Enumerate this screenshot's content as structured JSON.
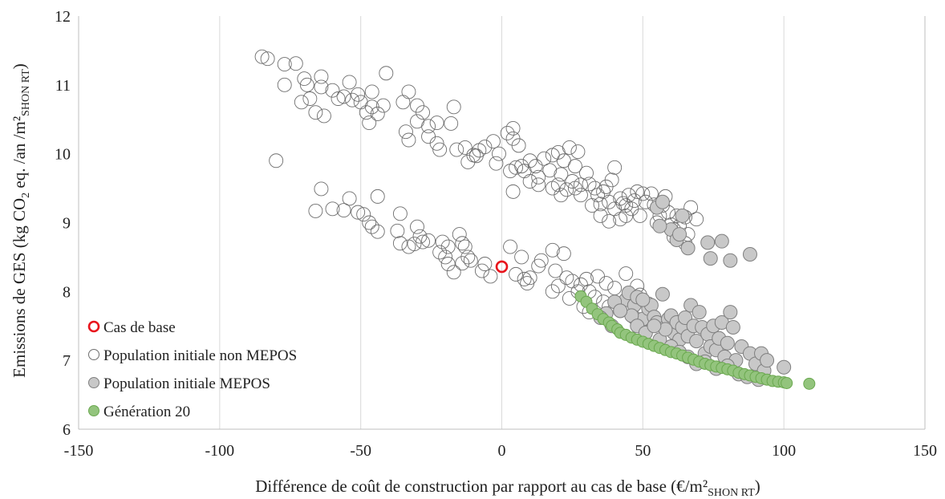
{
  "chart_data": {
    "type": "scatter",
    "xlabel": "Différence de coût de construction par rapport au cas de base (€/m²",
    "xlabel_sub": "SHON RT",
    "xlabel_end": ")",
    "ylabel_pre": "Emissions de GES (kg CO",
    "ylabel_co2_sub": "2",
    "ylabel_post": " eq. /an /m²",
    "ylabel_sub": "SHON RT",
    "ylabel_end": ")",
    "xlim": [
      -150,
      150
    ],
    "ylim": [
      6,
      12
    ],
    "x_ticks": [
      -150,
      -100,
      -50,
      0,
      50,
      100,
      150
    ],
    "y_ticks": [
      6,
      7,
      8,
      9,
      10,
      11,
      12
    ],
    "x_tick_labels": [
      "-150",
      "-100",
      "-50",
      "0",
      "50",
      "100",
      "150"
    ],
    "y_tick_labels": [
      "6",
      "7",
      "8",
      "9",
      "10",
      "11",
      "12"
    ],
    "grid": "vertical",
    "legend_position": "bottom-left",
    "series": [
      {
        "name": "Cas de base",
        "color": "#e8141c",
        "fill": "none",
        "points": [
          [
            0,
            8.36
          ]
        ]
      },
      {
        "name": "Population initiale non MEPOS",
        "color": "#6e6e6e",
        "fill": "none",
        "points": [
          [
            -85,
            11.41
          ],
          [
            -83,
            11.38
          ],
          [
            -77,
            11.3
          ],
          [
            -73,
            11.31
          ],
          [
            -70,
            11.09
          ],
          [
            -69,
            11.0
          ],
          [
            -64,
            11.12
          ],
          [
            -64,
            10.97
          ],
          [
            -60,
            10.92
          ],
          [
            -58,
            10.8
          ],
          [
            -54,
            11.04
          ],
          [
            -51,
            10.86
          ],
          [
            -46,
            10.9
          ],
          [
            -41,
            11.17
          ],
          [
            -33,
            10.9
          ],
          [
            -77,
            11.0
          ],
          [
            -71,
            10.75
          ],
          [
            -68,
            10.8
          ],
          [
            -66,
            10.6
          ],
          [
            -63,
            10.55
          ],
          [
            -56,
            10.83
          ],
          [
            -53,
            10.78
          ],
          [
            -50,
            10.75
          ],
          [
            -48,
            10.6
          ],
          [
            -46,
            10.68
          ],
          [
            -44,
            10.58
          ],
          [
            -47,
            10.45
          ],
          [
            -42,
            10.7
          ],
          [
            -35,
            10.75
          ],
          [
            -30,
            10.7
          ],
          [
            -28,
            10.6
          ],
          [
            -30,
            10.47
          ],
          [
            -26,
            10.4
          ],
          [
            -23,
            10.45
          ],
          [
            -18,
            10.44
          ],
          [
            -17,
            10.68
          ],
          [
            -34,
            10.32
          ],
          [
            -33,
            10.2
          ],
          [
            -26,
            10.25
          ],
          [
            -23,
            10.15
          ],
          [
            -22,
            10.06
          ],
          [
            -16,
            10.06
          ],
          [
            -13,
            10.09
          ],
          [
            -10,
            9.98
          ],
          [
            -8,
            10.05
          ],
          [
            -6,
            10.1
          ],
          [
            -3,
            10.18
          ],
          [
            -1,
            10.0
          ],
          [
            -12,
            9.88
          ],
          [
            -9,
            9.97
          ],
          [
            -2,
            9.86
          ],
          [
            2,
            10.3
          ],
          [
            4,
            10.37
          ],
          [
            4,
            10.22
          ],
          [
            6,
            10.12
          ],
          [
            3,
            9.75
          ],
          [
            5,
            9.8
          ],
          [
            7,
            9.82
          ],
          [
            8,
            9.75
          ],
          [
            10,
            9.9
          ],
          [
            12,
            9.82
          ],
          [
            13,
            9.66
          ],
          [
            15,
            9.93
          ],
          [
            17,
            9.76
          ],
          [
            18,
            9.98
          ],
          [
            20,
            10.02
          ],
          [
            21,
            9.7
          ],
          [
            22,
            9.9
          ],
          [
            24,
            10.09
          ],
          [
            26,
            9.82
          ],
          [
            27,
            10.03
          ],
          [
            4,
            9.45
          ],
          [
            10,
            9.6
          ],
          [
            13,
            9.55
          ],
          [
            18,
            9.5
          ],
          [
            20,
            9.55
          ],
          [
            21,
            9.4
          ],
          [
            23,
            9.48
          ],
          [
            25,
            9.6
          ],
          [
            26,
            9.5
          ],
          [
            28,
            9.55
          ],
          [
            28,
            9.4
          ],
          [
            30,
            9.72
          ],
          [
            31,
            9.56
          ],
          [
            33,
            9.5
          ],
          [
            34,
            9.4
          ],
          [
            35,
            9.27
          ],
          [
            36,
            9.45
          ],
          [
            37,
            9.52
          ],
          [
            38,
            9.3
          ],
          [
            39,
            9.62
          ],
          [
            40,
            9.8
          ],
          [
            40,
            9.2
          ],
          [
            42,
            9.35
          ],
          [
            43,
            9.28
          ],
          [
            44,
            9.1
          ],
          [
            45,
            9.4
          ],
          [
            46,
            9.2
          ],
          [
            47,
            9.32
          ],
          [
            48,
            9.45
          ],
          [
            49,
            9.1
          ],
          [
            50,
            9.42
          ],
          [
            51,
            9.3
          ],
          [
            53,
            9.42
          ],
          [
            54,
            9.26
          ],
          [
            55,
            9.0
          ],
          [
            56,
            9.1
          ],
          [
            57,
            9.25
          ],
          [
            58,
            9.38
          ],
          [
            59,
            9.15
          ],
          [
            60,
            8.97
          ],
          [
            61,
            8.9
          ],
          [
            61,
            8.79
          ],
          [
            62,
            9.1
          ],
          [
            63,
            8.95
          ],
          [
            65,
            9.08
          ],
          [
            65,
            8.7
          ],
          [
            66,
            8.83
          ],
          [
            67,
            9.22
          ],
          [
            69,
            9.05
          ],
          [
            32,
            9.25
          ],
          [
            35,
            9.1
          ],
          [
            38,
            9.02
          ],
          [
            42,
            9.05
          ],
          [
            44,
            9.25
          ],
          [
            -80,
            9.9
          ],
          [
            -64,
            9.49
          ],
          [
            -66,
            9.17
          ],
          [
            -60,
            9.2
          ],
          [
            -56,
            9.18
          ],
          [
            -54,
            9.35
          ],
          [
            -51,
            9.15
          ],
          [
            -49,
            9.12
          ],
          [
            -47,
            9.0
          ],
          [
            -46,
            8.94
          ],
          [
            -44,
            9.38
          ],
          [
            -44,
            8.87
          ],
          [
            -37,
            8.88
          ],
          [
            -36,
            8.7
          ],
          [
            -36,
            9.13
          ],
          [
            -33,
            8.65
          ],
          [
            -30,
            8.94
          ],
          [
            -29,
            8.8
          ],
          [
            -28,
            8.72
          ],
          [
            -31,
            8.69
          ],
          [
            -26,
            8.74
          ],
          [
            -22,
            8.57
          ],
          [
            -21,
            8.72
          ],
          [
            -19,
            8.65
          ],
          [
            -20,
            8.5
          ],
          [
            -15,
            8.83
          ],
          [
            -14,
            8.7
          ],
          [
            -13,
            8.65
          ],
          [
            -11,
            8.45
          ],
          [
            -12,
            8.5
          ],
          [
            -19,
            8.4
          ],
          [
            -17,
            8.28
          ],
          [
            -14,
            8.41
          ],
          [
            -7,
            8.3
          ],
          [
            -6,
            8.4
          ],
          [
            -4,
            8.22
          ],
          [
            3,
            8.65
          ],
          [
            5,
            8.25
          ],
          [
            7,
            8.5
          ],
          [
            8,
            8.18
          ],
          [
            9,
            8.12
          ],
          [
            10,
            8.2
          ],
          [
            13,
            8.37
          ],
          [
            14,
            8.45
          ],
          [
            18,
            8.6
          ],
          [
            19,
            8.3
          ],
          [
            22,
            8.55
          ],
          [
            23,
            8.2
          ],
          [
            25,
            8.15
          ],
          [
            27,
            8.0
          ],
          [
            28,
            8.1
          ],
          [
            30,
            8.18
          ],
          [
            31,
            8.0
          ],
          [
            33,
            7.92
          ],
          [
            34,
            8.22
          ],
          [
            36,
            7.85
          ],
          [
            37,
            8.12
          ],
          [
            38,
            7.78
          ],
          [
            40,
            8.05
          ],
          [
            42,
            7.72
          ],
          [
            44,
            8.26
          ],
          [
            45,
            7.9
          ],
          [
            47,
            7.62
          ],
          [
            48,
            8.08
          ],
          [
            49,
            7.95
          ],
          [
            50,
            7.7
          ],
          [
            52,
            7.82
          ],
          [
            53,
            7.58
          ],
          [
            18,
            8.0
          ],
          [
            20,
            8.08
          ],
          [
            24,
            7.9
          ],
          [
            29,
            7.78
          ],
          [
            31,
            7.7
          ]
        ]
      },
      {
        "name": "Population initiale MEPOS",
        "color": "#7f7f7f",
        "fill": "#c8c8c8",
        "points": [
          [
            55,
            9.22
          ],
          [
            57,
            9.3
          ],
          [
            60,
            8.9
          ],
          [
            62,
            8.75
          ],
          [
            64,
            9.1
          ],
          [
            66,
            8.63
          ],
          [
            73,
            8.71
          ],
          [
            74,
            8.48
          ],
          [
            78,
            8.73
          ],
          [
            81,
            8.45
          ],
          [
            88,
            8.54
          ],
          [
            56,
            8.95
          ],
          [
            63,
            8.83
          ],
          [
            44,
            7.88
          ],
          [
            45,
            7.98
          ],
          [
            47,
            7.8
          ],
          [
            48,
            7.92
          ],
          [
            50,
            7.6
          ],
          [
            52,
            7.75
          ],
          [
            53,
            7.8
          ],
          [
            54,
            7.63
          ],
          [
            55,
            7.55
          ],
          [
            57,
            7.96
          ],
          [
            58,
            7.48
          ],
          [
            59,
            7.6
          ],
          [
            60,
            7.65
          ],
          [
            61,
            7.4
          ],
          [
            62,
            7.55
          ],
          [
            63,
            7.3
          ],
          [
            64,
            7.48
          ],
          [
            65,
            7.62
          ],
          [
            66,
            7.35
          ],
          [
            67,
            7.8
          ],
          [
            68,
            7.5
          ],
          [
            69,
            7.28
          ],
          [
            70,
            7.7
          ],
          [
            71,
            7.48
          ],
          [
            72,
            7.1
          ],
          [
            73,
            7.38
          ],
          [
            74,
            7.2
          ],
          [
            75,
            7.5
          ],
          [
            76,
            7.15
          ],
          [
            77,
            7.32
          ],
          [
            78,
            7.55
          ],
          [
            79,
            7.05
          ],
          [
            80,
            7.25
          ],
          [
            81,
            7.7
          ],
          [
            82,
            7.48
          ],
          [
            83,
            7.0
          ],
          [
            85,
            7.2
          ],
          [
            88,
            7.1
          ],
          [
            90,
            6.95
          ],
          [
            92,
            7.1
          ],
          [
            93,
            6.85
          ],
          [
            94,
            7.0
          ],
          [
            100,
            6.9
          ],
          [
            46,
            7.65
          ],
          [
            48,
            7.5
          ],
          [
            51,
            7.4
          ],
          [
            56,
            7.3
          ],
          [
            58,
            7.45
          ],
          [
            60,
            7.2
          ],
          [
            63,
            7.12
          ],
          [
            66,
            7.05
          ],
          [
            69,
            6.95
          ],
          [
            72,
            6.98
          ],
          [
            76,
            6.88
          ],
          [
            80,
            6.92
          ],
          [
            84,
            6.8
          ],
          [
            87,
            6.76
          ],
          [
            91,
            6.72
          ],
          [
            40,
            7.85
          ],
          [
            42,
            7.72
          ],
          [
            50,
            7.88
          ],
          [
            54,
            7.5
          ],
          [
            37,
            7.68
          ],
          [
            35,
            7.62
          ],
          [
            39,
            7.5
          ]
        ]
      },
      {
        "name": "Génération 20",
        "color": "#6aa84f",
        "fill": "#93c47d",
        "points": [
          [
            28,
            7.93
          ],
          [
            30,
            7.85
          ],
          [
            32,
            7.75
          ],
          [
            34,
            7.67
          ],
          [
            36,
            7.6
          ],
          [
            38,
            7.55
          ],
          [
            39,
            7.5
          ],
          [
            41,
            7.45
          ],
          [
            42,
            7.4
          ],
          [
            44,
            7.37
          ],
          [
            46,
            7.33
          ],
          [
            48,
            7.3
          ],
          [
            50,
            7.27
          ],
          [
            52,
            7.24
          ],
          [
            54,
            7.21
          ],
          [
            56,
            7.18
          ],
          [
            58,
            7.15
          ],
          [
            60,
            7.12
          ],
          [
            62,
            7.1
          ],
          [
            64,
            7.07
          ],
          [
            66,
            7.04
          ],
          [
            68,
            7.01
          ],
          [
            70,
            6.98
          ],
          [
            72,
            6.95
          ],
          [
            74,
            6.93
          ],
          [
            76,
            6.91
          ],
          [
            78,
            6.89
          ],
          [
            80,
            6.87
          ],
          [
            82,
            6.85
          ],
          [
            84,
            6.82
          ],
          [
            86,
            6.8
          ],
          [
            88,
            6.78
          ],
          [
            90,
            6.76
          ],
          [
            92,
            6.74
          ],
          [
            94,
            6.72
          ],
          [
            96,
            6.7
          ],
          [
            98,
            6.69
          ],
          [
            100,
            6.68
          ],
          [
            101,
            6.67
          ],
          [
            109,
            6.66
          ]
        ]
      }
    ]
  }
}
